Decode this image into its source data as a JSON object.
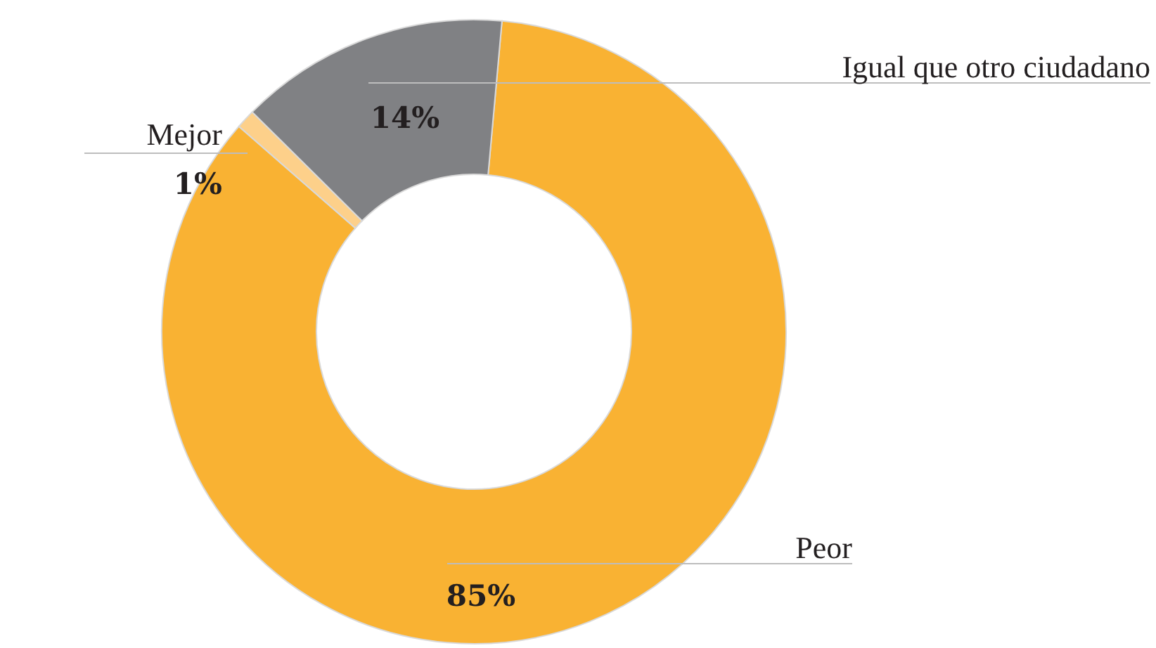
{
  "chart_data": {
    "type": "donut",
    "categories": [
      "Peor",
      "Mejor",
      "Igual que otro ciudadano"
    ],
    "values": [
      85,
      1,
      14
    ],
    "colors": [
      "#f9b233",
      "#fdd08a",
      "#808184"
    ],
    "value_labels": [
      "85%",
      "1%",
      "14%"
    ]
  }
}
